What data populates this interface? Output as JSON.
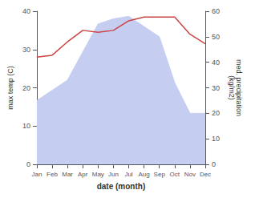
{
  "chart_data": {
    "type": "line",
    "categories": [
      "Jan",
      "Feb",
      "Mar",
      "Apr",
      "May",
      "Jun",
      "Jul",
      "Aug",
      "Sep",
      "Oct",
      "Nov",
      "Dec"
    ],
    "xlabel": "date (month)",
    "ylabel": "max temp (C)",
    "y2label": "med. precipitation\n(kg/m2)",
    "ylim": [
      0,
      40
    ],
    "yticks": [
      0,
      10,
      20,
      30,
      40
    ],
    "y2lim": [
      0,
      60
    ],
    "y2ticks": [
      0,
      10,
      20,
      30,
      40,
      50,
      60
    ],
    "grid": false,
    "series": [
      {
        "type": "area",
        "axis": "y2",
        "color": "#c5cef0",
        "values": [
          25,
          29,
          33,
          44,
          55,
          57,
          58,
          54,
          50,
          32,
          20,
          20
        ]
      },
      {
        "type": "line",
        "color": "#cc4444",
        "values": [
          28,
          28.5,
          32,
          35,
          34.5,
          35,
          37.5,
          38.5,
          38.5,
          38.5,
          34,
          31.5
        ]
      }
    ]
  }
}
